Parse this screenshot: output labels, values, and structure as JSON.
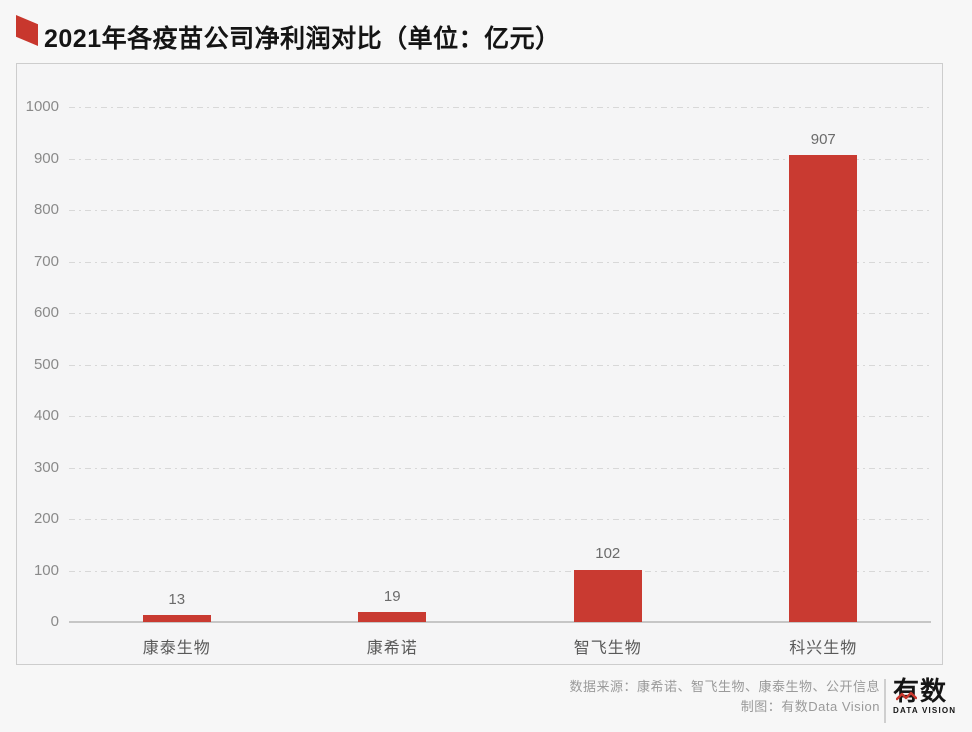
{
  "title": "2021年各疫苗公司净利润对比（单位：亿元）",
  "chart_data": {
    "type": "bar",
    "title": "2021年各疫苗公司净利润对比（单位：亿元）",
    "unit": "亿元",
    "categories": [
      "康泰生物",
      "康希诺",
      "智飞生物",
      "科兴生物"
    ],
    "values": [
      13,
      19,
      102,
      907
    ],
    "xlabel": "",
    "ylabel": "",
    "ylim": [
      0,
      1000
    ],
    "yticks": [
      0,
      100,
      200,
      300,
      400,
      500,
      600,
      700,
      800,
      900,
      1000
    ],
    "grid": "horizontal-dashed",
    "legend": "none",
    "bar_color": "#c93a31"
  },
  "footer": {
    "source_line": "数据来源：康希诺、智飞生物、康泰生物、公开信息",
    "credit_line": "制图：有数Data Vision",
    "logo_name": "有数",
    "logo_subtitle": "DATA VISION"
  },
  "colors": {
    "bar": "#c93a31",
    "title_marker": "#c8372d",
    "panel_background": "#f5f5f6",
    "page_background": "#f7f7f7",
    "gridline": "#d8d8d8",
    "logo_accent": "#c8372d"
  }
}
